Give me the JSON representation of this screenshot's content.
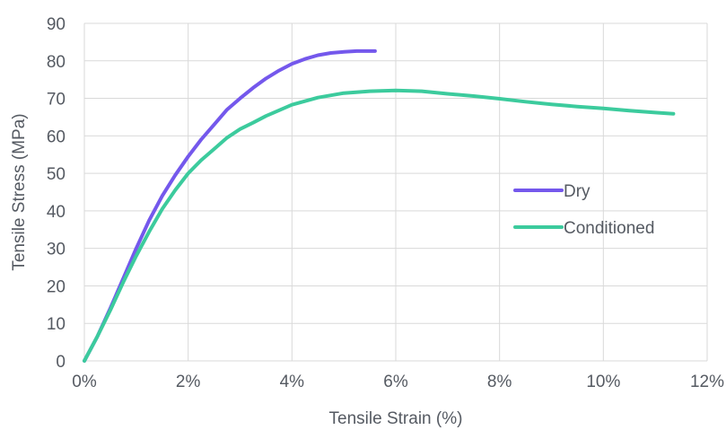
{
  "chart_data": {
    "type": "line",
    "title": "",
    "xlabel": "Tensile Strain (%)",
    "ylabel": "Tensile Stress (MPa)",
    "xlim": [
      0,
      12
    ],
    "ylim": [
      0,
      90
    ],
    "x_ticks": [
      0,
      2,
      4,
      6,
      8,
      10,
      12
    ],
    "x_tick_labels": [
      "0%",
      "2%",
      "4%",
      "6%",
      "8%",
      "10%",
      "12%"
    ],
    "y_ticks": [
      0,
      10,
      20,
      30,
      40,
      50,
      60,
      70,
      80,
      90
    ],
    "y_tick_labels": [
      "0",
      "10",
      "20",
      "30",
      "40",
      "50",
      "60",
      "70",
      "80",
      "90"
    ],
    "grid": true,
    "legend_position": "right",
    "series": [
      {
        "name": "Dry",
        "color": "#7458ec",
        "points": [
          [
            0.0,
            0
          ],
          [
            0.25,
            6.5
          ],
          [
            0.5,
            14
          ],
          [
            0.75,
            22
          ],
          [
            1.0,
            30
          ],
          [
            1.25,
            37.5
          ],
          [
            1.5,
            44
          ],
          [
            1.75,
            49.5
          ],
          [
            2.0,
            54.5
          ],
          [
            2.25,
            59
          ],
          [
            2.5,
            63
          ],
          [
            2.75,
            67
          ],
          [
            3.0,
            70
          ],
          [
            3.25,
            72.8
          ],
          [
            3.5,
            75.3
          ],
          [
            3.75,
            77.4
          ],
          [
            4.0,
            79.2
          ],
          [
            4.25,
            80.5
          ],
          [
            4.5,
            81.5
          ],
          [
            4.75,
            82.1
          ],
          [
            5.0,
            82.4
          ],
          [
            5.25,
            82.6
          ],
          [
            5.6,
            82.6
          ]
        ]
      },
      {
        "name": "Conditioned",
        "color": "#3ccb9d",
        "points": [
          [
            0.0,
            0
          ],
          [
            0.25,
            6.5
          ],
          [
            0.5,
            13.5
          ],
          [
            0.75,
            21
          ],
          [
            1.0,
            28
          ],
          [
            1.25,
            34.5
          ],
          [
            1.5,
            40.5
          ],
          [
            1.75,
            45.5
          ],
          [
            2.0,
            50
          ],
          [
            2.25,
            53.5
          ],
          [
            2.5,
            56.5
          ],
          [
            2.75,
            59.5
          ],
          [
            3.0,
            61.8
          ],
          [
            3.25,
            63.5
          ],
          [
            3.5,
            65.3
          ],
          [
            3.75,
            66.8
          ],
          [
            4.0,
            68.3
          ],
          [
            4.5,
            70.2
          ],
          [
            5.0,
            71.4
          ],
          [
            5.5,
            71.9
          ],
          [
            6.0,
            72.1
          ],
          [
            6.5,
            71.9
          ],
          [
            7.0,
            71.2
          ],
          [
            7.5,
            70.6
          ],
          [
            8.0,
            69.9
          ],
          [
            8.5,
            69.1
          ],
          [
            9.0,
            68.4
          ],
          [
            9.5,
            67.8
          ],
          [
            10.0,
            67.3
          ],
          [
            10.5,
            66.7
          ],
          [
            11.0,
            66.2
          ],
          [
            11.35,
            65.9
          ]
        ]
      }
    ]
  }
}
